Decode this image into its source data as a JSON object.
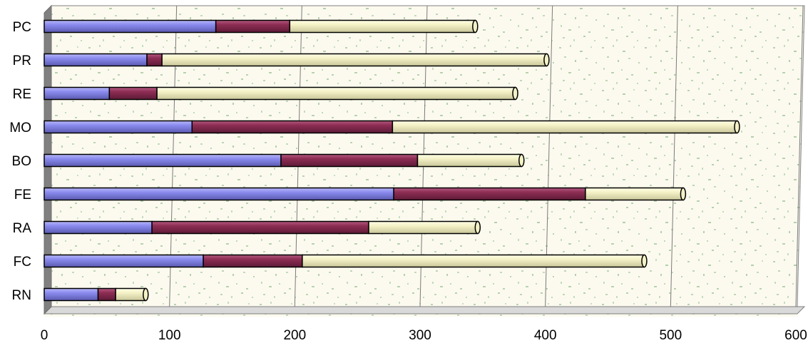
{
  "chart_data": {
    "type": "bar",
    "orientation": "horizontal",
    "stacked": true,
    "categories": [
      "PC",
      "PR",
      "RE",
      "MO",
      "BO",
      "FE",
      "RA",
      "FC",
      "RN"
    ],
    "series": [
      {
        "color": "#8C8CF0",
        "values": [
          137,
          82,
          52,
          118,
          189,
          279,
          86,
          127,
          43
        ]
      },
      {
        "color": "#8E2E55",
        "values": [
          59,
          12,
          38,
          160,
          109,
          153,
          173,
          79,
          14
        ]
      },
      {
        "color": "#F4F2C6",
        "values": [
          148,
          307,
          286,
          275,
          83,
          78,
          87,
          273,
          24
        ]
      }
    ],
    "xlim": [
      0,
      600
    ],
    "xticks": [
      "0",
      "100",
      "200",
      "300",
      "400",
      "500",
      "600"
    ],
    "grid": true,
    "legend": "none"
  }
}
